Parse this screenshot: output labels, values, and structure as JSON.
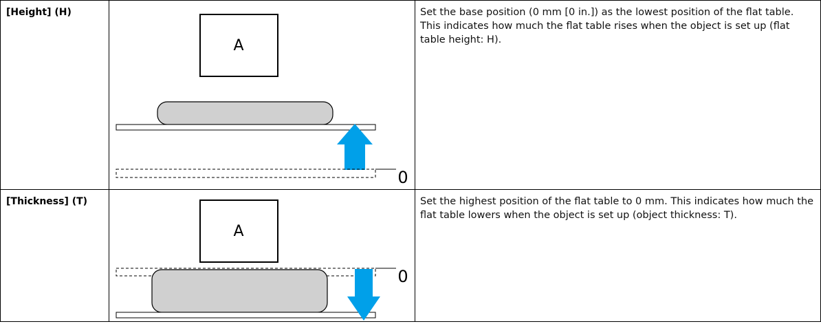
{
  "table": {
    "rows": [
      {
        "label": "[Height] (H)",
        "diagram": {
          "box_label": "A",
          "zero_label": "0"
        },
        "description": "Set the base position (0 mm [0 in.]) as the lowest position of the flat table. This indicates how much the flat table rises when the object is set up (flat table height: H)."
      },
      {
        "label": "[Thickness] (T)",
        "diagram": {
          "box_label": "A",
          "zero_label": "0"
        },
        "description": "Set the highest position of the flat table to 0 mm. This indicates how much the flat table lowers when the object is set up (object thickness: T)."
      }
    ]
  }
}
